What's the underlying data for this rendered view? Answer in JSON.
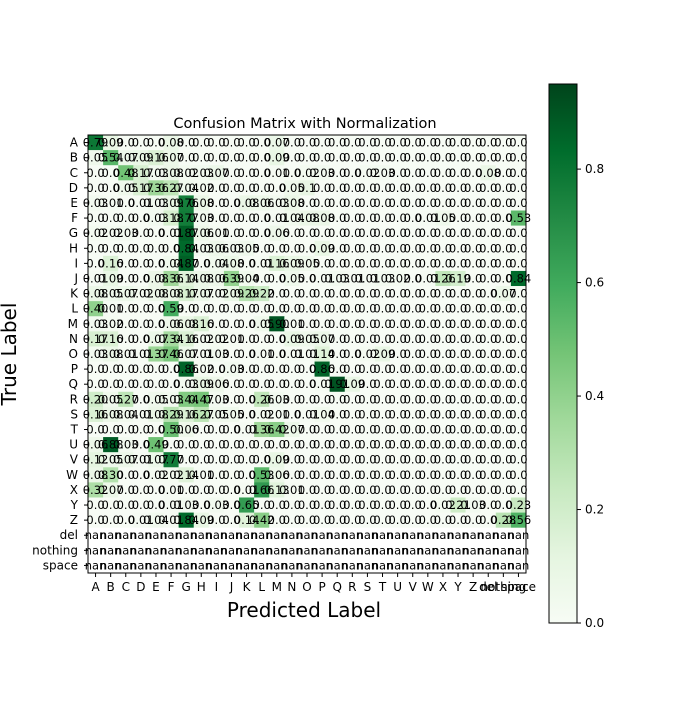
{
  "chart_data": {
    "type": "heatmap",
    "title": "Confusion Matrix with Normalization",
    "xlabel": "Predicted Label",
    "ylabel": "True Label",
    "x_categories": [
      "A",
      "B",
      "C",
      "D",
      "E",
      "F",
      "G",
      "H",
      "I",
      "J",
      "K",
      "L",
      "M",
      "N",
      "O",
      "P",
      "Q",
      "R",
      "S",
      "T",
      "U",
      "V",
      "W",
      "X",
      "Y",
      "Z",
      "del",
      "nothing",
      "space"
    ],
    "y_categories": [
      "A",
      "B",
      "C",
      "D",
      "E",
      "F",
      "G",
      "H",
      "I",
      "J",
      "K",
      "L",
      "M",
      "N",
      "O",
      "P",
      "Q",
      "R",
      "S",
      "T",
      "U",
      "V",
      "W",
      "X",
      "Y",
      "Z",
      "del",
      "nothing",
      "space"
    ],
    "cell_text": [
      [
        "0.79",
        "0.09",
        "0.0",
        "0.0",
        "0.0",
        "0.08",
        "0.0",
        "0.0",
        "0.0",
        "0.0",
        "0.0",
        "0.0",
        "0.07",
        "0.0",
        "0.0",
        "0.0",
        "0.0",
        "0.0",
        "0.0",
        "0.0",
        "0.0",
        "0.0",
        "0.0",
        "0.0",
        "0.0",
        "0.0",
        "0.0",
        "0.0",
        "0.0"
      ],
      [
        "0.05",
        "0.54",
        "0.07",
        "0.09",
        "0.16",
        "0.07",
        "0.0",
        "0.0",
        "0.0",
        "0.0",
        "0.0",
        "0.0",
        "0.09",
        "0.0",
        "0.0",
        "0.0",
        "0.0",
        "0.0",
        "0.0",
        "0.0",
        "0.0",
        "0.0",
        "0.0",
        "0.0",
        "0.0",
        "0.0",
        "0.0",
        "0.0",
        "0.0"
      ],
      [
        "0.0",
        "0.0",
        "0.48",
        "0.17",
        "0.03",
        "0.08",
        "0.02",
        "0.03",
        "0.07",
        "0.0",
        "0.0",
        "0.0",
        "0.01",
        "0.0",
        "0.02",
        "0.03",
        "0.0",
        "0.0",
        "0.02",
        "0.03",
        "0.0",
        "0.0",
        "0.0",
        "0.0",
        "0.0",
        "0.0",
        "0.08",
        "0.0",
        "0.0"
      ],
      [
        "0.0",
        "0.0",
        "0.05",
        "0.17",
        "0.36",
        "0.27",
        "0.04",
        "0.02",
        "0.0",
        "0.0",
        "0.0",
        "0.0",
        "0.0",
        "0.05",
        "0.1",
        "0.0",
        "0.0",
        "0.0",
        "0.0",
        "0.0",
        "0.0",
        "0.0",
        "0.0",
        "0.0",
        "0.0",
        "0.0",
        "0.0",
        "0.0",
        "0.0"
      ],
      [
        "0.03",
        "0.01",
        "0.0",
        "0.01",
        "0.03",
        "0.09",
        "0.76",
        "0.08",
        "0.0",
        "0.0",
        "0.08",
        "0.06",
        "0.03",
        "0.08",
        "0.0",
        "0.0",
        "0.0",
        "0.0",
        "0.0",
        "0.0",
        "0.0",
        "0.0",
        "0.0",
        "0.0",
        "0.0",
        "0.0",
        "0.0",
        "0.0",
        "0.0"
      ],
      [
        "0.0",
        "0.0",
        "0.0",
        "0.0",
        "0.03",
        "0.18",
        "0.77",
        "0.03",
        "0.0",
        "0.0",
        "0.0",
        "0.0",
        "0.01",
        "0.04",
        "0.08",
        "0.08",
        "0.0",
        "0.0",
        "0.0",
        "0.0",
        "0.0",
        "0.0",
        "0.01",
        "0.05",
        "0.0",
        "0.0",
        "0.0",
        "0.0",
        "0.53"
      ],
      [
        "0.02",
        "0.02",
        "0.03",
        "0.0",
        "0.0",
        "0.01",
        "0.87",
        "0.06",
        "0.01",
        "0.0",
        "0.0",
        "0.0",
        "0.06",
        "0.0",
        "0.0",
        "0.0",
        "0.0",
        "0.0",
        "0.0",
        "0.0",
        "0.0",
        "0.0",
        "0.0",
        "0.0",
        "0.0",
        "0.0",
        "0.0",
        "0.0",
        "0.0"
      ],
      [
        "0.0",
        "0.0",
        "0.0",
        "0.0",
        "0.0",
        "0.0",
        "0.84",
        "0.03",
        "0.06",
        "0.03",
        "0.05",
        "0.0",
        "0.0",
        "0.0",
        "0.0",
        "0.09",
        "0.0",
        "0.0",
        "0.0",
        "0.0",
        "0.0",
        "0.0",
        "0.0",
        "0.0",
        "0.0",
        "0.0",
        "0.0",
        "0.0",
        "0.0"
      ],
      [
        "0.0",
        "0.16",
        "0.0",
        "0.0",
        "0.0",
        "0.04",
        "0.87",
        "0.0",
        "0.04",
        "0.08",
        "0.0",
        "0.01",
        "0.16",
        "0.09",
        "0.05",
        "0.0",
        "0.0",
        "0.0",
        "0.0",
        "0.0",
        "0.0",
        "0.0",
        "0.0",
        "0.0",
        "0.0",
        "0.0",
        "0.0",
        "0.0",
        "0.0"
      ],
      [
        "0.01",
        "0.09",
        "0.0",
        "0.0",
        "0.08",
        "0.36",
        "0.14",
        "0.08",
        "0.06",
        "0.39",
        "0.04",
        "0.0",
        "0.0",
        "0.05",
        "0.0",
        "0.01",
        "0.03",
        "0.01",
        "0.01",
        "0.03",
        "0.02",
        "0.0",
        "0.01",
        "0.26",
        "0.19",
        "0.0",
        "0.0",
        "0.0",
        "0.84"
      ],
      [
        "0.08",
        "0.05",
        "0.07",
        "0.02",
        "0.08",
        "0.08",
        "0.17",
        "0.07",
        "0.02",
        "0.09",
        "0.29",
        "0.22",
        "0.0",
        "0.0",
        "0.0",
        "0.0",
        "0.0",
        "0.0",
        "0.0",
        "0.0",
        "0.0",
        "0.0",
        "0.0",
        "0.0",
        "0.0",
        "0.0",
        "0.0",
        "0.07",
        "0.0"
      ],
      [
        "0.40",
        "0.01",
        "0.0",
        "0.0",
        "0.0",
        "0.59",
        "0.0",
        "0.0",
        "0.0",
        "0.0",
        "0.0",
        "0.0",
        "0.0",
        "0.0",
        "0.0",
        "0.0",
        "0.0",
        "0.0",
        "0.0",
        "0.0",
        "0.0",
        "0.0",
        "0.0",
        "0.0",
        "0.0",
        "0.0",
        "0.0",
        "0.0",
        "0.0"
      ],
      [
        "0.03",
        "0.02",
        "0.0",
        "0.0",
        "0.0",
        "0.06",
        "0.08",
        "0.16",
        "0.0",
        "0.0",
        "0.0",
        "0.05",
        "0.90",
        "0.01",
        "0.0",
        "0.0",
        "0.0",
        "0.0",
        "0.0",
        "0.0",
        "0.0",
        "0.0",
        "0.0",
        "0.0",
        "0.0",
        "0.0",
        "0.0",
        "0.0",
        "0.0"
      ],
      [
        "0.17",
        "0.16",
        "0.0",
        "0.0",
        "0.07",
        "0.34",
        "0.16",
        "0.02",
        "0.02",
        "0.01",
        "0.0",
        "0.0",
        "0.0",
        "0.09",
        "0.05",
        "0.07",
        "0.0",
        "0.0",
        "0.0",
        "0.0",
        "0.0",
        "0.0",
        "0.0",
        "0.0",
        "0.0",
        "0.0",
        "0.0",
        "0.0",
        "0.0"
      ],
      [
        "0.03",
        "0.08",
        "0.01",
        "0.01",
        "0.37",
        "0.46",
        "0.07",
        "0.01",
        "0.03",
        "0.0",
        "0.0",
        "0.01",
        "0.0",
        "0.01",
        "0.01",
        "0.14",
        "0.0",
        "0.0",
        "0.02",
        "0.09",
        "0.0",
        "0.0",
        "0.0",
        "0.0",
        "0.0",
        "0.0",
        "0.0",
        "0.0",
        "0.0"
      ],
      [
        "0.0",
        "0.0",
        "0.0",
        "0.0",
        "0.0",
        "0.0",
        "0.86",
        "0.02",
        "0.0",
        "0.03",
        "0.0",
        "0.0",
        "0.0",
        "0.0",
        "0.0",
        "0.86",
        "0.0",
        "0.0",
        "0.0",
        "0.0",
        "0.0",
        "0.0",
        "0.0",
        "0.0",
        "0.0",
        "0.0",
        "0.0",
        "0.0",
        "0.0"
      ],
      [
        "0.0",
        "0.0",
        "0.0",
        "0.0",
        "0.0",
        "0.0",
        "0.03",
        "0.09",
        "0.06",
        "0.0",
        "0.0",
        "0.0",
        "0.0",
        "0.0",
        "0.0",
        "0.01",
        "0.91",
        "0.09",
        "0.0",
        "0.0",
        "0.0",
        "0.0",
        "0.0",
        "0.0",
        "0.0",
        "0.0",
        "0.0",
        "0.0",
        "0.0"
      ],
      [
        "0.20",
        "0.05",
        "0.27",
        "0.0",
        "0.05",
        "0.03",
        "0.44",
        "0.47",
        "0.03",
        "0.0",
        "0.0",
        "0.26",
        "0.03",
        "0.0",
        "0.0",
        "0.0",
        "0.0",
        "0.0",
        "0.0",
        "0.0",
        "0.0",
        "0.0",
        "0.0",
        "0.0",
        "0.0",
        "0.0",
        "0.0",
        "0.0",
        "0.0"
      ],
      [
        "0.16",
        "0.08",
        "0.04",
        "0.01",
        "0.08",
        "0.29",
        "0.16",
        "0.27",
        "0.05",
        "0.05",
        "0.0",
        "0.02",
        "0.01",
        "0.0",
        "0.01",
        "0.04",
        "0.0",
        "0.0",
        "0.0",
        "0.0",
        "0.0",
        "0.0",
        "0.0",
        "0.0",
        "0.0",
        "0.0",
        "0.0",
        "0.0",
        "0.0"
      ],
      [
        "0.0",
        "0.0",
        "0.0",
        "0.0",
        "0.0",
        "0.50",
        "0.06",
        "0.0",
        "0.0",
        "0.0",
        "0.01",
        "0.36",
        "0.42",
        "0.07",
        "0.0",
        "0.0",
        "0.0",
        "0.0",
        "0.0",
        "0.0",
        "0.0",
        "0.0",
        "0.0",
        "0.0",
        "0.0",
        "0.0",
        "0.0",
        "0.0",
        "0.0"
      ],
      [
        "0.06",
        "0.88",
        "0.03",
        "0.0",
        "0.49",
        "0.0",
        "0.0",
        "0.0",
        "0.0",
        "0.0",
        "0.0",
        "0.0",
        "0.0",
        "0.0",
        "0.0",
        "0.0",
        "0.0",
        "0.0",
        "0.0",
        "0.0",
        "0.0",
        "0.0",
        "0.0",
        "0.0",
        "0.0",
        "0.0",
        "0.0",
        "0.0",
        "0.0"
      ],
      [
        "0.12",
        "0.05",
        "0.07",
        "0.01",
        "0.07",
        "0.77",
        "0.0",
        "0.0",
        "0.0",
        "0.0",
        "0.0",
        "0.0",
        "0.09",
        "0.0",
        "0.0",
        "0.0",
        "0.0",
        "0.0",
        "0.0",
        "0.0",
        "0.0",
        "0.0",
        "0.0",
        "0.0",
        "0.0",
        "0.0",
        "0.0",
        "0.0",
        "0.0"
      ],
      [
        "0.08",
        "0.30",
        "0.0",
        "0.0",
        "0.02",
        "0.02",
        "0.14",
        "0.01",
        "0.0",
        "0.0",
        "0.0",
        "0.53",
        "0.06",
        "0.0",
        "0.0",
        "0.0",
        "0.0",
        "0.0",
        "0.0",
        "0.0",
        "0.0",
        "0.0",
        "0.0",
        "0.0",
        "0.0",
        "0.0",
        "0.0",
        "0.0",
        "0.0"
      ],
      [
        "0.32",
        "0.07",
        "0.0",
        "0.0",
        "0.0",
        "0.01",
        "0.0",
        "0.0",
        "0.0",
        "0.0",
        "0.01",
        "0.66",
        "0.13",
        "0.01",
        "0.0",
        "0.0",
        "0.0",
        "0.0",
        "0.0",
        "0.0",
        "0.0",
        "0.0",
        "0.0",
        "0.0",
        "0.0",
        "0.0",
        "0.0",
        "0.0",
        "0.0"
      ],
      [
        "0.0",
        "0.0",
        "0.0",
        "0.0",
        "0.0",
        "0.01",
        "0.03",
        "0.0",
        "0.03",
        "0.0",
        "0.65",
        "0.0",
        "0.0",
        "0.0",
        "0.0",
        "0.0",
        "0.0",
        "0.0",
        "0.0",
        "0.0",
        "0.0",
        "0.0",
        "0.0",
        "0.02",
        "0.21",
        "0.03",
        "0.0",
        "0.0",
        "0.23"
      ],
      [
        "0.0",
        "0.0",
        "0.0",
        "0.01",
        "0.04",
        "0.01",
        "0.84",
        "0.09",
        "0.0",
        "0.0",
        "0.14",
        "0.42",
        "0.0",
        "0.0",
        "0.0",
        "0.0",
        "0.0",
        "0.0",
        "0.0",
        "0.0",
        "0.0",
        "0.0",
        "0.0",
        "0.0",
        "0.0",
        "0.0",
        "0.0",
        "0.28",
        "0.56"
      ],
      [
        "nan",
        "nan",
        "nan",
        "nan",
        "nan",
        "nan",
        "nan",
        "nan",
        "nan",
        "nan",
        "nan",
        "nan",
        "nan",
        "nan",
        "nan",
        "nan",
        "nan",
        "nan",
        "nan",
        "nan",
        "nan",
        "nan",
        "nan",
        "nan",
        "nan",
        "nan",
        "nan",
        "nan",
        "nan"
      ],
      [
        "nan",
        "nan",
        "nan",
        "nan",
        "nan",
        "nan",
        "nan",
        "nan",
        "nan",
        "nan",
        "nan",
        "nan",
        "nan",
        "nan",
        "nan",
        "nan",
        "nan",
        "nan",
        "nan",
        "nan",
        "nan",
        "nan",
        "nan",
        "nan",
        "nan",
        "nan",
        "nan",
        "nan",
        "nan"
      ],
      [
        "nan",
        "nan",
        "nan",
        "nan",
        "nan",
        "nan",
        "nan",
        "nan",
        "nan",
        "nan",
        "nan",
        "nan",
        "nan",
        "nan",
        "nan",
        "nan",
        "nan",
        "nan",
        "nan",
        "nan",
        "nan",
        "nan",
        "nan",
        "nan",
        "nan",
        "nan",
        "nan",
        "nan",
        "nan"
      ]
    ],
    "colorbar": {
      "range": [
        0.0,
        0.95
      ],
      "ticks": [
        "0.0",
        "0.2",
        "0.4",
        "0.6",
        "0.8"
      ],
      "colormap": "Greens",
      "low_color": "#f7fcf5",
      "high_color": "#00441b"
    },
    "grid": false
  }
}
